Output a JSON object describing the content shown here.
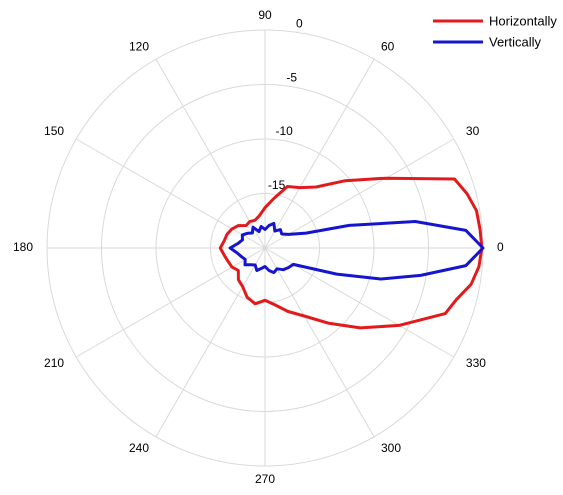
{
  "chart_data": {
    "type": "polar-line",
    "x": [
      0,
      5,
      10,
      15,
      20,
      30,
      40,
      50,
      60,
      70,
      80,
      90,
      100,
      110,
      120,
      130,
      140,
      150,
      160,
      170,
      180,
      190,
      200,
      210,
      220,
      230,
      240,
      250,
      260,
      270,
      280,
      290,
      300,
      310,
      320,
      330,
      340,
      345,
      350,
      355
    ],
    "series": [
      {
        "name": "Horizontally",
        "color": "#e31a1c",
        "values": [
          -0.1,
          -0.2,
          -0.3,
          -0.8,
          -1.5,
          -7.2,
          -10.4,
          -12.7,
          -13.6,
          -14,
          -15.4,
          -16.3,
          -17,
          -17.3,
          -17.2,
          -17.3,
          -16.8,
          -16.5,
          -16.3,
          -16.2,
          -15.9,
          -16.2,
          -16.4,
          -16.5,
          -16.8,
          -16.2,
          -15.9,
          -15.2,
          -14.8,
          -15.2,
          -14.7,
          -13.8,
          -12.8,
          -11,
          -8.6,
          -5.8,
          -2.4,
          -1.8,
          -0.8,
          -0.3
        ]
      },
      {
        "name": "Vertically",
        "color": "#1515d0",
        "values": [
          0,
          -1.5,
          -6,
          -12,
          -16,
          -17.5,
          -18,
          -17.8,
          -18.2,
          -17.6,
          -17.9,
          -18.3,
          -18,
          -18.4,
          -17.8,
          -18.2,
          -17.9,
          -17.6,
          -17.8,
          -17.5,
          -16.8,
          -17.4,
          -17.7,
          -17.9,
          -17.6,
          -18,
          -18.2,
          -17.8,
          -18.1,
          -18.3,
          -17.9,
          -17.6,
          -17.8,
          -17.4,
          -17.2,
          -17,
          -13,
          -9,
          -5.5,
          -1.5
        ]
      }
    ],
    "rlim": [
      -20,
      0
    ],
    "rticks": [
      -15,
      -10,
      -5,
      0
    ],
    "thetaticks": [
      0,
      30,
      60,
      90,
      120,
      150,
      180,
      210,
      240,
      270,
      300,
      330
    ],
    "grid": true,
    "legend": "upper right"
  }
}
